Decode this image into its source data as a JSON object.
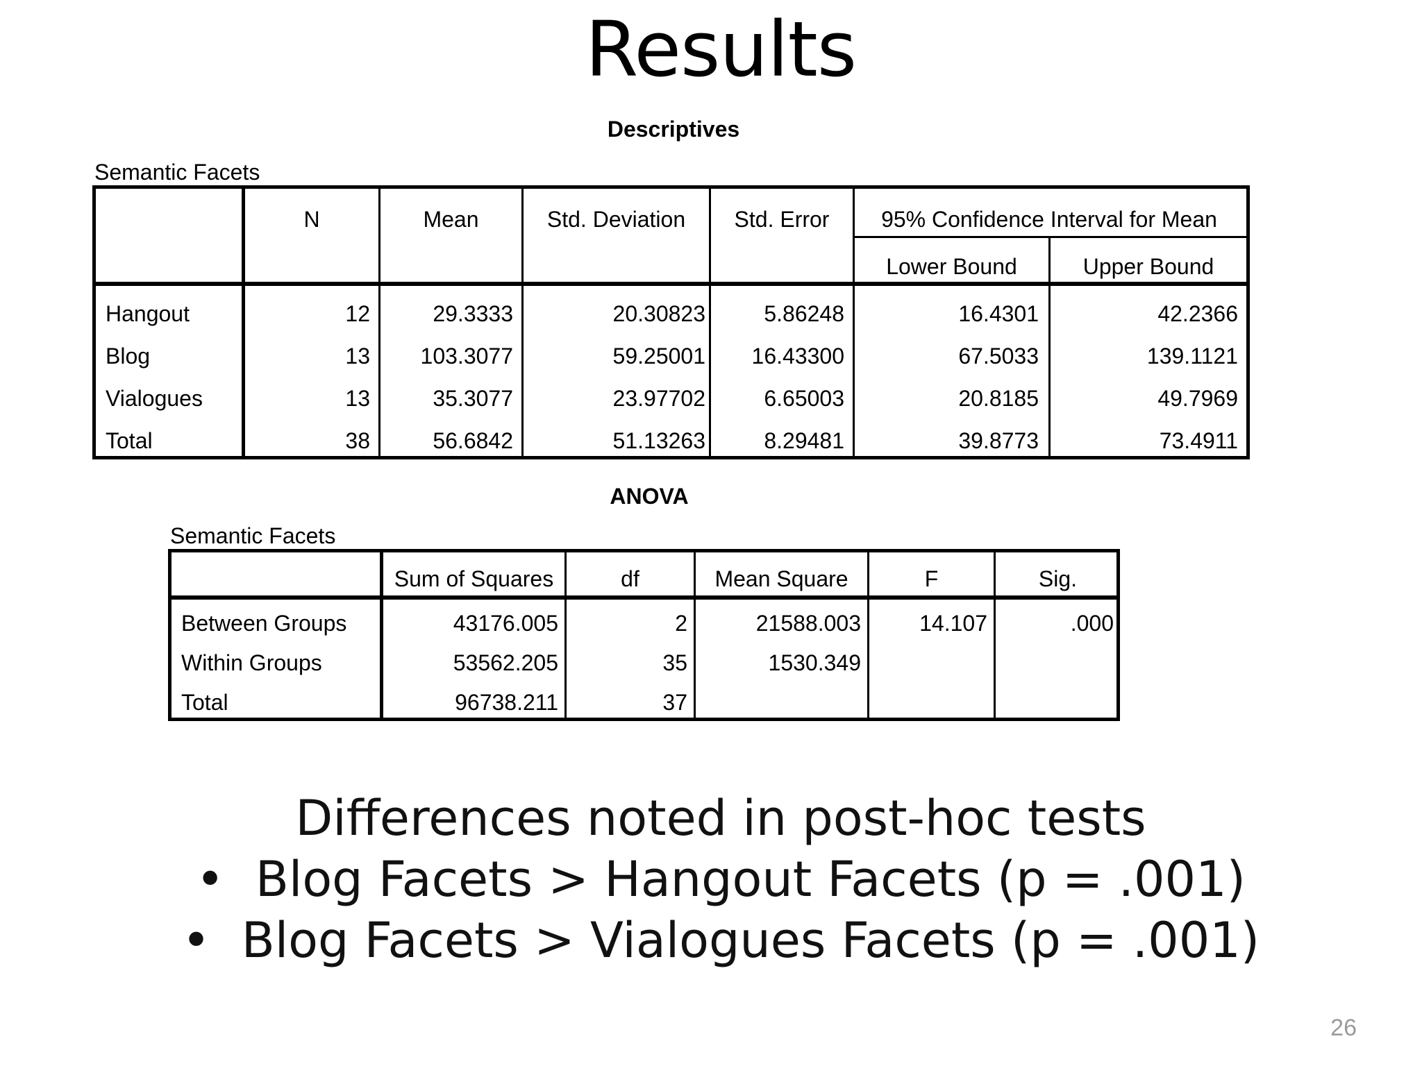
{
  "slide": {
    "title": "Results",
    "page_number": "26"
  },
  "descriptives": {
    "title": "Descriptives",
    "variable_label": "Semantic Facets",
    "headers": {
      "n": "N",
      "mean": "Mean",
      "std_deviation": "Std. Deviation",
      "std_error": "Std. Error",
      "ci_group": "95% Confidence Interval for Mean",
      "lower_bound": "Lower Bound",
      "upper_bound": "Upper Bound"
    },
    "rows": [
      {
        "label": "Hangout",
        "n": "12",
        "mean": "29.3333",
        "sd": "20.30823",
        "se": "5.86248",
        "lower": "16.4301",
        "upper": "42.2366"
      },
      {
        "label": "Blog",
        "n": "13",
        "mean": "103.3077",
        "sd": "59.25001",
        "se": "16.43300",
        "lower": "67.5033",
        "upper": "139.1121"
      },
      {
        "label": "Vialogues",
        "n": "13",
        "mean": "35.3077",
        "sd": "23.97702",
        "se": "6.65003",
        "lower": "20.8185",
        "upper": "49.7969"
      },
      {
        "label": "Total",
        "n": "38",
        "mean": "56.6842",
        "sd": "51.13263",
        "se": "8.29481",
        "lower": "39.8773",
        "upper": "73.4911"
      }
    ]
  },
  "anova": {
    "title": "ANOVA",
    "variable_label": "Semantic Facets",
    "headers": {
      "ss": "Sum of Squares",
      "df": "df",
      "ms": "Mean Square",
      "f": "F",
      "sig": "Sig."
    },
    "rows": [
      {
        "label": "Between Groups",
        "ss": "43176.005",
        "df": "2",
        "ms": "21588.003",
        "f": "14.107",
        "sig": ".000"
      },
      {
        "label": "Within Groups",
        "ss": "53562.205",
        "df": "35",
        "ms": "1530.349",
        "f": "",
        "sig": ""
      },
      {
        "label": "Total",
        "ss": "96738.211",
        "df": "37",
        "ms": "",
        "f": "",
        "sig": ""
      }
    ]
  },
  "summary": {
    "heading": "Differences noted in post-hoc tests",
    "bullet_glyph": "•",
    "bullets": [
      "Blog Facets > Hangout Facets (p = .001)",
      "Blog Facets > Vialogues Facets (p = .001)"
    ]
  }
}
